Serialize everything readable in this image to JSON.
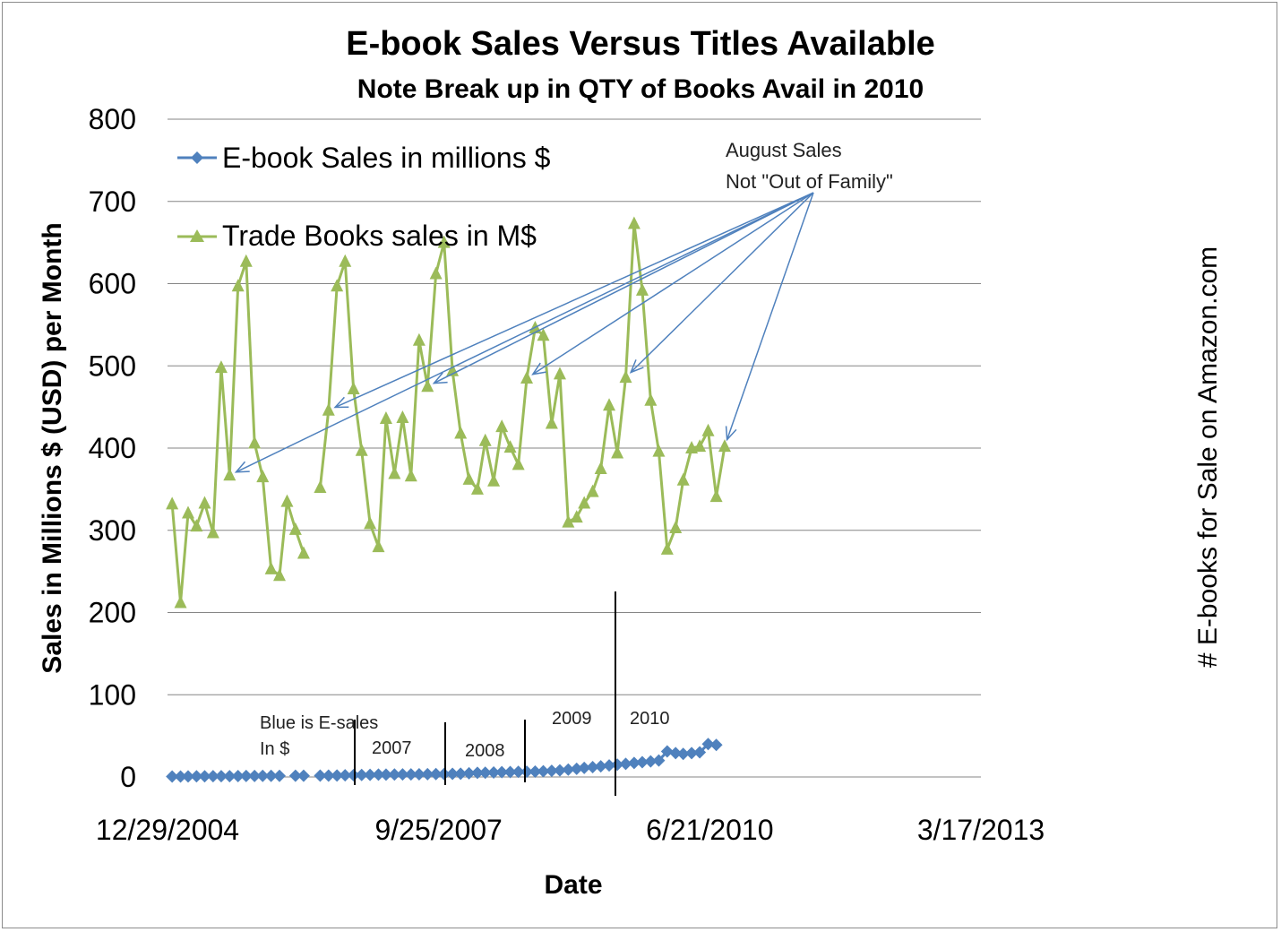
{
  "chart_data": {
    "type": "line",
    "title": "E-book Sales Versus Titles Available",
    "subtitle": "Note Break up in QTY of Books Avail in 2010",
    "xlabel": "Date",
    "ylabel": "Sales in Millions $ (USD) per Month",
    "y2label": "# E-books for Sale on Amazon.com",
    "ylim": [
      0,
      800
    ],
    "yticks": [
      "0",
      "100",
      "200",
      "300",
      "400",
      "500",
      "600",
      "700",
      "800"
    ],
    "xlim": [
      "2004-12-29",
      "2013-03-17"
    ],
    "xticks": [
      "12/29/2004",
      "9/25/2007",
      "6/21/2010",
      "3/17/2013"
    ],
    "grid": "horizontal",
    "legend_position": "top-left",
    "colors": {
      "ebook": "#4f81bd",
      "trade": "#9bbb59",
      "annotation": "#4f81bd"
    },
    "start_month": "2005-01",
    "series": [
      {
        "name": "E-book Sales in millions $",
        "marker": "diamond",
        "values": [
          0.5,
          0.6,
          0.7,
          0.8,
          0.8,
          0.9,
          1,
          1,
          1.1,
          1.2,
          1.2,
          1.3,
          1.3,
          1.4,
          null,
          1.5,
          1.5,
          null,
          1.6,
          1.7,
          1.8,
          2,
          2.2,
          2.4,
          2.6,
          2.8,
          2.9,
          3,
          3.1,
          3.2,
          3.3,
          3.4,
          3.5,
          3.6,
          3.8,
          4,
          4.5,
          5,
          5.2,
          5.5,
          5.8,
          6,
          6.2,
          6.4,
          6.6,
          7,
          7.5,
          8,
          9,
          10,
          11,
          12,
          13,
          14,
          15,
          16,
          17,
          18,
          19,
          20,
          31,
          29,
          28,
          29,
          30,
          40,
          39
        ]
      },
      {
        "name": "Trade Books sales in M$",
        "marker": "triangle",
        "values": [
          332,
          212,
          321,
          305,
          333,
          297,
          498,
          367,
          597,
          627,
          406,
          365,
          253,
          245,
          335,
          301,
          272,
          null,
          352,
          446,
          597,
          627,
          472,
          397,
          308,
          280,
          436,
          369,
          437,
          366,
          531,
          475,
          612,
          650,
          494,
          418,
          362,
          350,
          409,
          360,
          426,
          401,
          380,
          485,
          546,
          537,
          430,
          490,
          310,
          316,
          333,
          347,
          375,
          452,
          394,
          486,
          673,
          592,
          458,
          396,
          277,
          303,
          361,
          400,
          402,
          421,
          341,
          402
        ]
      }
    ],
    "annotations": {
      "august_note": [
        "August Sales",
        "Not \"Out of Family\""
      ],
      "blue_note": [
        "Blue is E-sales",
        "In $"
      ],
      "year_labels": [
        "2007",
        "2008",
        "2009",
        "2010"
      ]
    },
    "august_arrow_months": [
      7,
      19,
      31,
      43,
      55,
      67
    ]
  }
}
